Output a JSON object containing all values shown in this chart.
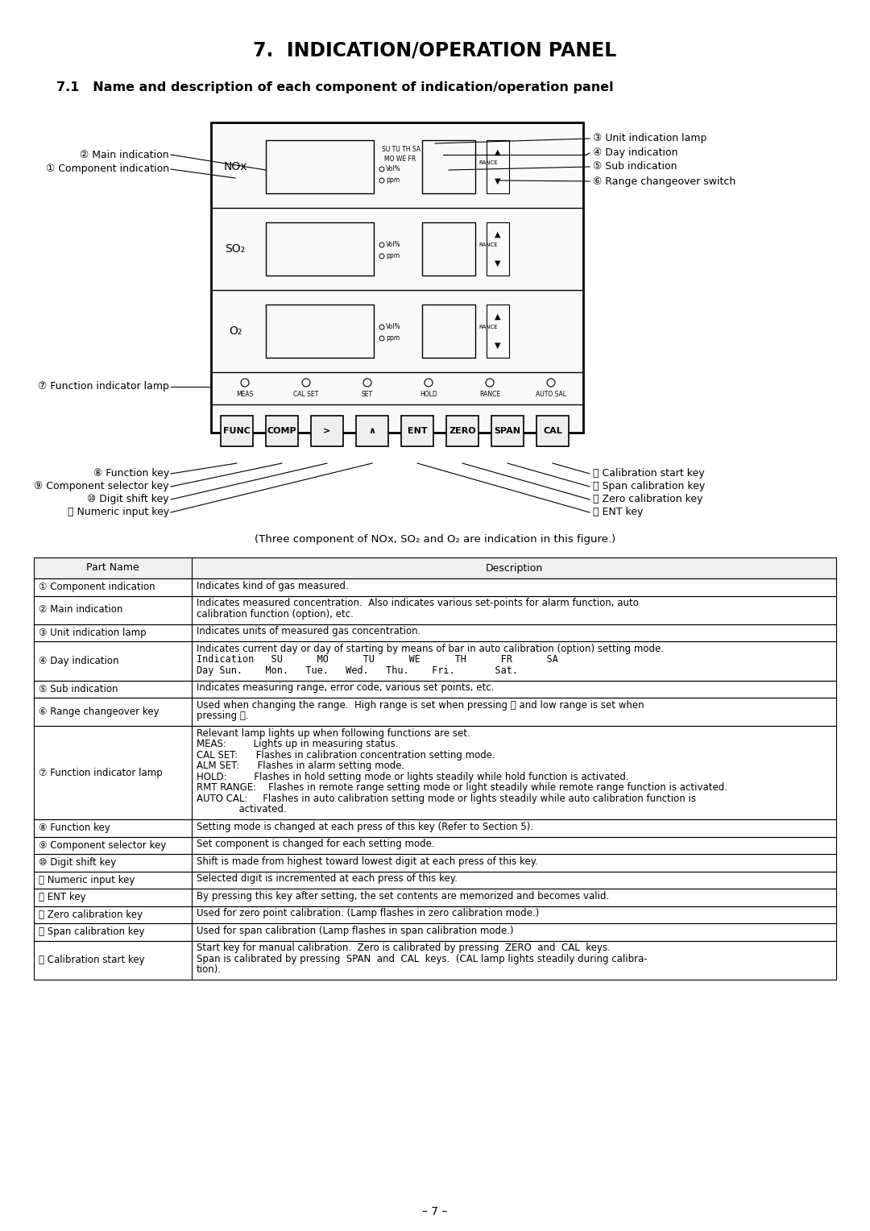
{
  "title": "7.  INDICATION/OPERATION PANEL",
  "subtitle": "7.1   Name and description of each component of indication/operation panel",
  "caption": "(Three component of NOx, SO₂ and O₂ are indication in this figure.)",
  "page_number": "– 7 –",
  "bg": "#ffffff",
  "row_data": [
    [
      "① Component indication",
      [
        "Indicates kind of gas measured."
      ]
    ],
    [
      "② Main indication",
      [
        "Indicates measured concentration.  Also indicates various set-points for alarm function, auto",
        "calibration function (option), etc."
      ]
    ],
    [
      "③ Unit indication lamp",
      [
        "Indicates units of measured gas concentration."
      ]
    ],
    [
      "④ Day indication",
      [
        "Indicates current day or day of starting by means of bar in auto calibration (option) setting mode.",
        "Indication   SU      MO      TU      WE      TH      FR      SA",
        "Day Sun.    Mon.   Tue.   Wed.   Thu.    Fri.       Sat."
      ]
    ],
    [
      "⑤ Sub indication",
      [
        "Indicates measuring range, error code, various set points, etc."
      ]
    ],
    [
      "⑥ Range changeover key",
      [
        "Used when changing the range.  High range is set when pressing Ⓞ and low range is set when",
        "pressing Ⓟ."
      ]
    ],
    [
      "⑦ Function indicator lamp",
      [
        "Relevant lamp lights up when following functions are set.",
        "MEAS:         Lights up in measuring status.",
        "CAL SET:      Flashes in calibration concentration setting mode.",
        "ALM SET:      Flashes in alarm setting mode.",
        "HOLD:         Flashes in hold setting mode or lights steadily while hold function is activated.",
        "RMT RANGE:    Flashes in remote range setting mode or light steadily while remote range function is activated.",
        "AUTO CAL:     Flashes in auto calibration setting mode or lights steadily while auto calibration function is",
        "              activated."
      ]
    ],
    [
      "⑧ Function key",
      [
        "Setting mode is changed at each press of this key (Refer to Section 5)."
      ]
    ],
    [
      "⑨ Component selector key",
      [
        "Set component is changed for each setting mode."
      ]
    ],
    [
      "⑩ Digit shift key",
      [
        "Shift is made from highest toward lowest digit at each press of this key."
      ]
    ],
    [
      "⑪ Numeric input key",
      [
        "Selected digit is incremented at each press of this key."
      ]
    ],
    [
      "⑫ ENT key",
      [
        "By pressing this key after setting, the set contents are memorized and becomes valid."
      ]
    ],
    [
      "⑬ Zero calibration key",
      [
        "Used for zero point calibration. (Lamp flashes in zero calibration mode.)"
      ]
    ],
    [
      "⑭ Span calibration key",
      [
        "Used for span calibration (Lamp flashes in span calibration mode.)"
      ]
    ],
    [
      "⑮ Calibration start key",
      [
        "Start key for manual calibration.  Zero is calibrated by pressing  ZERO  and  CAL  keys.",
        "Span is calibrated by pressing  SPAN  and  CAL  keys.  (CAL lamp lights steadily during calibra-",
        "tion)."
      ]
    ]
  ]
}
